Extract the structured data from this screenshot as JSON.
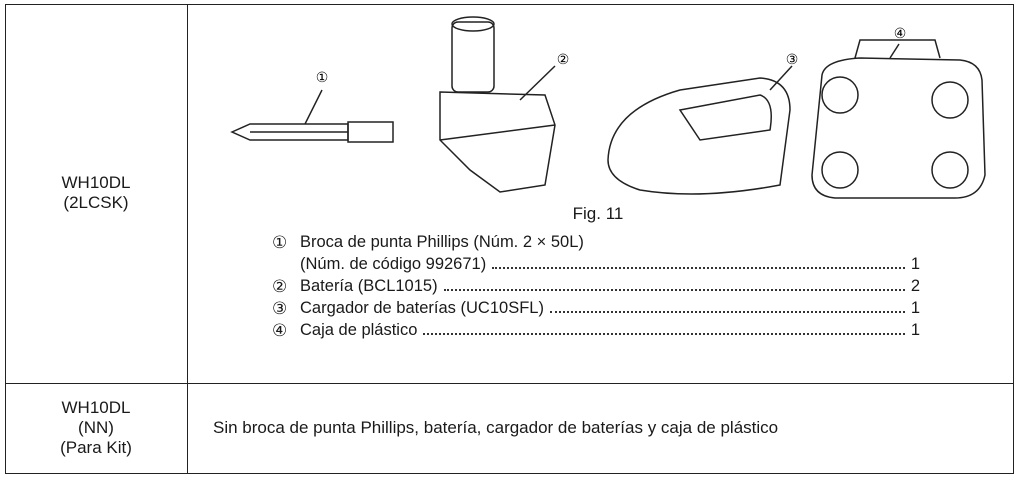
{
  "table": {
    "rows": [
      {
        "model": [
          "WH10DL",
          "(2LCSK)"
        ],
        "figure": {
          "callouts": [
            "①",
            "②",
            "③",
            "④"
          ],
          "caption": "Fig. 11"
        },
        "items": [
          {
            "marker": "①",
            "lines": [
              {
                "text": "Broca de punta Phillips (Núm. 2 × 50L)"
              },
              {
                "text": "(Núm. de código 992671)",
                "qty": 1
              }
            ]
          },
          {
            "marker": "②",
            "lines": [
              {
                "text": "Batería (BCL1015)",
                "qty": 2
              }
            ]
          },
          {
            "marker": "③",
            "lines": [
              {
                "text": "Cargador de baterías (UC10SFL)",
                "qty": 1
              }
            ]
          },
          {
            "marker": "④",
            "lines": [
              {
                "text": "Caja de plástico",
                "qty": 1
              }
            ]
          }
        ]
      },
      {
        "model": [
          "WH10DL",
          "(NN)",
          "(Para Kit)"
        ],
        "note": "Sin broca de punta Phillips, batería, cargador de baterías y caja de plástico"
      }
    ]
  }
}
